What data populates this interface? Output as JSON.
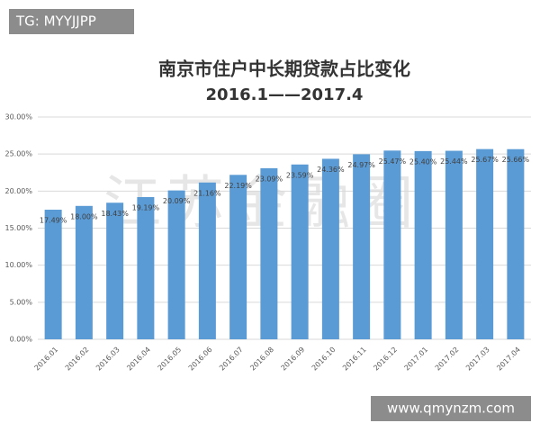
{
  "chart_data": {
    "type": "bar",
    "title": "南京市住户中长期贷款占比变化",
    "subtitle": "2016.1——2017.4",
    "categories": [
      "2016.01",
      "2016.02",
      "2016.03",
      "2016.04",
      "2016.05",
      "2016.06",
      "2016.07",
      "2016.08",
      "2016.09",
      "2016.10",
      "2016.11",
      "2016.12",
      "2017.01",
      "2017.02",
      "2017.03",
      "2017.04"
    ],
    "values": [
      17.49,
      18.0,
      18.43,
      19.19,
      20.09,
      21.16,
      22.19,
      23.09,
      23.59,
      24.36,
      24.97,
      25.47,
      25.4,
      25.44,
      25.67,
      25.66
    ],
    "value_labels": [
      "17.49%",
      "18.00%",
      "18.43%",
      "19.19%",
      "20.09%",
      "21.16%",
      "22.19%",
      "23.09%",
      "23.59%",
      "24.36%",
      "24.97%",
      "25.47%",
      "25.40%",
      "25.44%",
      "25.67%",
      "25.66%"
    ],
    "color": "#5b9bd5",
    "ylim": [
      0,
      30
    ],
    "yticks": [
      {
        "value": 0,
        "label": "0.00%"
      },
      {
        "value": 5,
        "label": "5.00%"
      },
      {
        "value": 10,
        "label": "10.00%"
      },
      {
        "value": 15,
        "label": "15.00%"
      },
      {
        "value": 20,
        "label": "20.00%"
      },
      {
        "value": 25,
        "label": "25.00%"
      },
      {
        "value": 30,
        "label": "30.00%"
      }
    ],
    "grid": true
  },
  "watermarks": {
    "top_left": "TG: MYYJJPP",
    "center": "江苏金融圈",
    "bottom_right": "www.qmynzm.com"
  }
}
